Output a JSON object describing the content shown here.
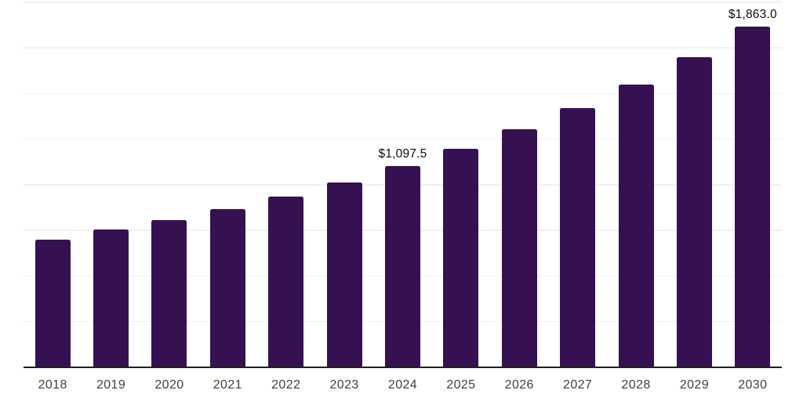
{
  "chart_data": {
    "type": "bar",
    "categories": [
      "2018",
      "2019",
      "2020",
      "2021",
      "2022",
      "2023",
      "2024",
      "2025",
      "2026",
      "2027",
      "2028",
      "2029",
      "2030"
    ],
    "values": [
      695.0,
      752.0,
      803.5,
      863.0,
      930.0,
      1010.0,
      1097.5,
      1193.5,
      1300.5,
      1414.5,
      1545.5,
      1696.5,
      1863.0
    ],
    "data_labels": {
      "2024": "$1,097.5",
      "2030": "$1,863.0"
    },
    "ylim": [
      0,
      2000
    ],
    "grid": true,
    "grid_step": 250,
    "legend": false,
    "colors": {
      "bar": "#361151",
      "gridline": "#f1f1f1",
      "axis_line": "#1f1f1f",
      "tick_label": "#3f3f3f",
      "data_label": "#0d0d0d",
      "background": "#ffffff"
    }
  }
}
